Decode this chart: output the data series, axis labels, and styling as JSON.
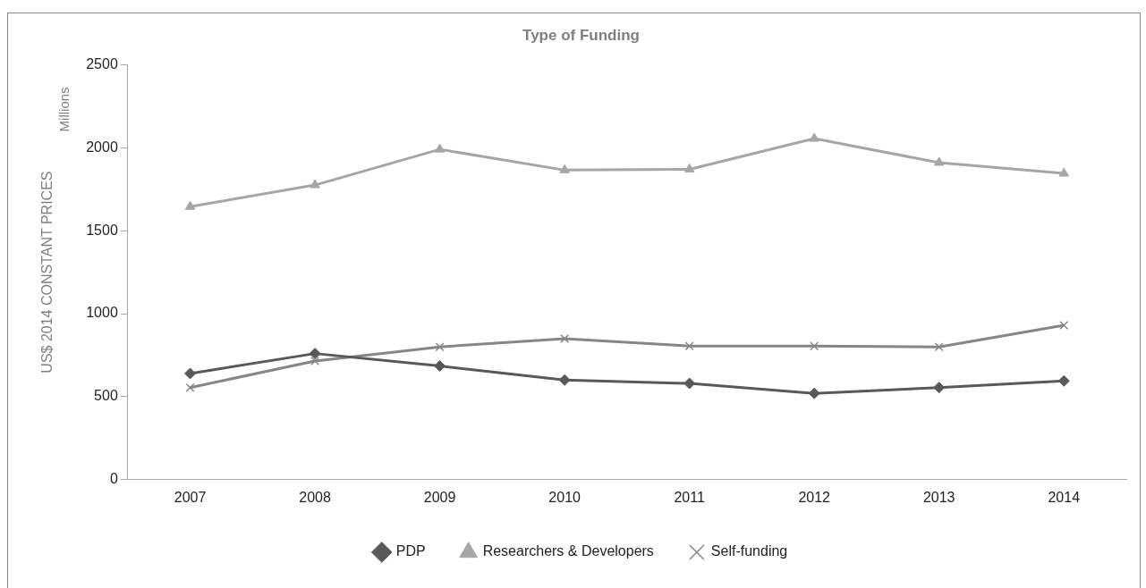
{
  "chart_data": {
    "type": "line",
    "title": "Type of Funding",
    "ylabel": "US$ 2014 CONSTANT PRICES",
    "annotations": [
      "Millions"
    ],
    "categories": [
      "2007",
      "2008",
      "2009",
      "2010",
      "2011",
      "2012",
      "2013",
      "2014"
    ],
    "series": [
      {
        "name": "PDP",
        "color": "#595959",
        "marker": "diamond",
        "values": [
          640,
          760,
          685,
          600,
          580,
          520,
          555,
          595
        ]
      },
      {
        "name": "Researchers & Developers",
        "color": "#a6a6a6",
        "marker": "triangle",
        "values": [
          1645,
          1775,
          1990,
          1865,
          1870,
          2055,
          1910,
          1845
        ]
      },
      {
        "name": "Self-funding",
        "color": "#868686",
        "marker": "cross",
        "values": [
          555,
          715,
          800,
          850,
          805,
          805,
          800,
          930
        ]
      }
    ],
    "ylim": [
      0,
      2500
    ],
    "yticks": [
      0,
      500,
      1000,
      1500,
      2000,
      2500
    ],
    "grid": false,
    "legend": "bottom",
    "line_style": "solid"
  }
}
